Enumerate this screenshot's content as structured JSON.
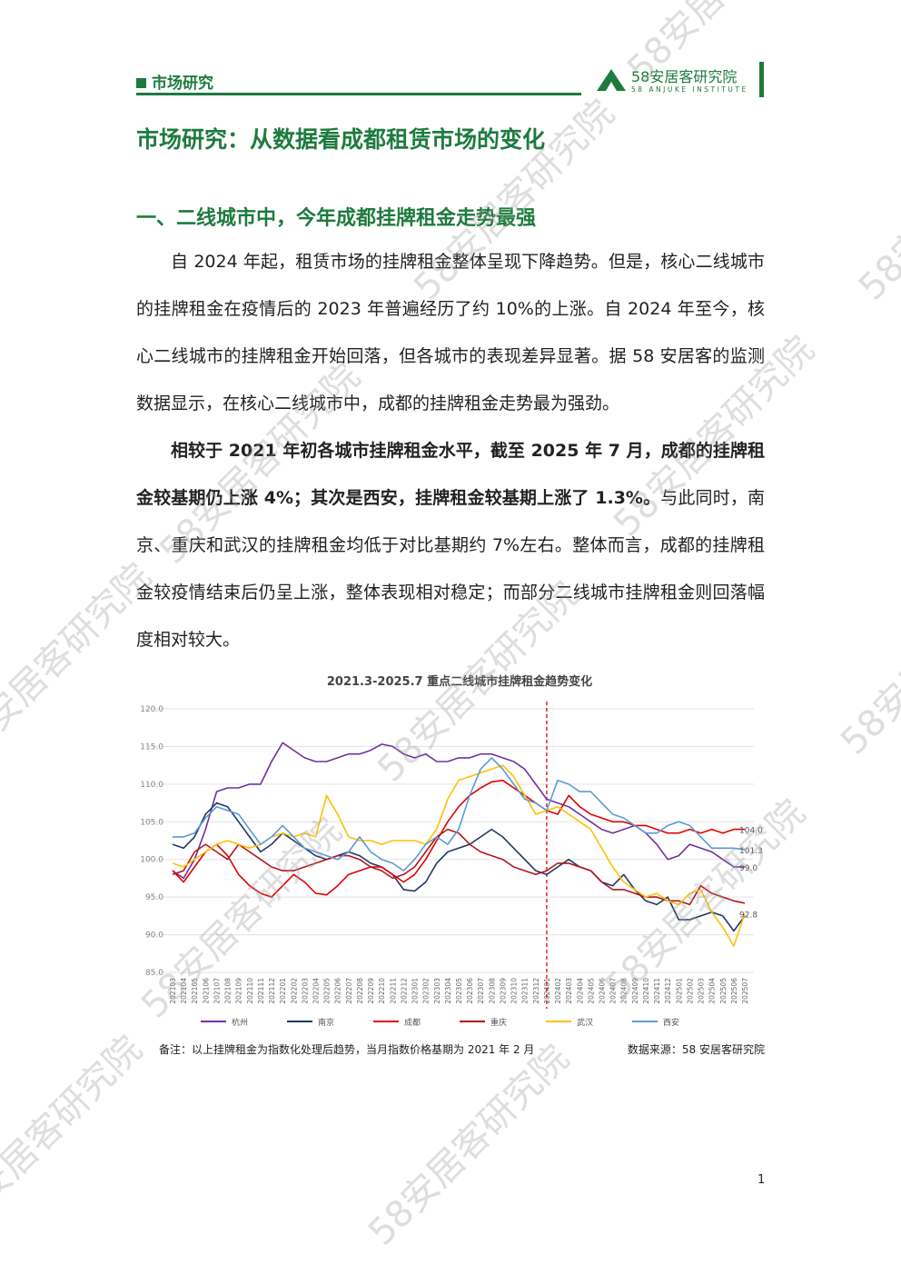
{
  "header": {
    "section": "市场研究",
    "logo_cn": "58安居客研究院",
    "logo_en": "58 ANJUKE INSTITUTE"
  },
  "title": "市场研究：从数据看成都租赁市场的变化",
  "heading": "一、二线城市中，今年成都挂牌租金走势最强",
  "paragraphs": [
    {
      "text": "自 2024 年起，租赁市场的挂牌租金整体呈现下降趋势。但是，核心二线城市的挂牌租金在疫情后的 2023 年普遍经历了约 10%的上涨。自 2024 年至今，核心二线城市的挂牌租金开始回落，但各城市的表现差异显著。据 58 安居客的监测数据显示，在核心二线城市中，成都的挂牌租金走势最为强劲。"
    },
    {
      "bold": "相较于 2021 年初各城市挂牌租金水平，截至 2025 年 7 月，成都的挂牌租金较基期仍上涨 4%；其次是西安，挂牌租金较基期上涨了 1.3%。",
      "text": "与此同时，南京、重庆和武汉的挂牌租金均低于对比基期约 7%左右。整体而言，成都的挂牌租金较疫情结束后仍呈上涨，整体表现相对稳定；而部分二线城市挂牌租金则回落幅度相对较大。"
    }
  ],
  "chart_data": {
    "type": "line",
    "title": "2021.3-2025.7 重点二线城市挂牌租金趋势变化",
    "categories": [
      "202103",
      "202104",
      "202105",
      "202106",
      "202107",
      "202108",
      "202109",
      "202110",
      "202111",
      "202112",
      "202201",
      "202202",
      "202203",
      "202204",
      "202205",
      "202206",
      "202207",
      "202208",
      "202209",
      "202210",
      "202211",
      "202212",
      "202301",
      "202302",
      "202303",
      "202304",
      "202305",
      "202306",
      "202307",
      "202308",
      "202309",
      "202310",
      "202311",
      "202312",
      "202401",
      "202402",
      "202403",
      "202404",
      "202405",
      "202406",
      "202407",
      "202408",
      "202409",
      "202410",
      "202411",
      "202412",
      "202501",
      "202502",
      "202503",
      "202504",
      "202505",
      "202506",
      "202507"
    ],
    "ylim": [
      85,
      120
    ],
    "yticks": [
      {
        "value": 85,
        "label": "85.0"
      },
      {
        "value": 90,
        "label": "90.0"
      },
      {
        "value": 95,
        "label": "95.0"
      },
      {
        "value": 100,
        "label": "100.0"
      },
      {
        "value": 105,
        "label": "105.0"
      },
      {
        "value": 110,
        "label": "110.0"
      },
      {
        "value": 115,
        "label": "115.0"
      },
      {
        "value": 120,
        "label": "120.0"
      }
    ],
    "grid": true,
    "marker_x": "202401",
    "marker_color": "#e00000",
    "legend": "bottom",
    "series": [
      {
        "name": "杭州",
        "color": "#7030a0",
        "values": [
          98.5,
          97.5,
          100,
          104,
          109,
          109.5,
          109.5,
          110,
          110,
          113,
          115.5,
          114.5,
          113.5,
          113,
          113,
          113.5,
          114,
          114,
          114.5,
          115.3,
          115,
          114,
          113.5,
          114,
          113,
          113,
          113.5,
          113.5,
          114,
          114,
          113.5,
          113,
          112,
          110,
          108,
          107.5,
          107,
          106,
          105,
          104,
          103.5,
          104,
          104.5,
          103.5,
          102,
          100,
          100.5,
          102,
          101.5,
          101,
          100,
          99,
          99
        ],
        "value_labels": [
          null,
          null,
          null,
          null,
          null,
          null,
          null,
          null,
          null,
          null,
          null,
          null,
          null,
          null,
          null,
          null,
          null,
          null,
          null,
          null,
          null,
          null,
          null,
          null,
          null,
          null,
          null,
          null,
          null,
          null,
          null,
          null,
          null,
          null,
          null,
          null,
          null,
          null,
          null,
          null,
          null,
          null,
          null,
          null,
          null,
          null,
          null,
          null,
          null,
          null,
          null,
          null,
          "99.0"
        ]
      },
      {
        "name": "南京",
        "color": "#1f3864",
        "values": [
          102,
          101.5,
          103,
          106,
          107.5,
          107,
          105,
          103,
          101,
          102,
          103.5,
          102.5,
          101.5,
          100.5,
          100,
          100.5,
          101,
          100.5,
          99.5,
          99,
          98,
          96,
          95.8,
          97,
          99.5,
          101,
          101.5,
          102,
          103,
          104,
          103,
          101.5,
          100,
          98.5,
          98,
          99,
          100,
          99,
          98.5,
          97,
          96.5,
          98,
          96,
          94.5,
          94,
          95,
          92,
          92,
          92.5,
          93,
          92.5,
          90.5,
          92.5
        ]
      },
      {
        "name": "成都",
        "color": "#e00000",
        "values": [
          98.5,
          97,
          99,
          101,
          102,
          100.5,
          98,
          96.5,
          95.5,
          95,
          96.5,
          98,
          97,
          95.5,
          95.3,
          96.5,
          98,
          98.5,
          99,
          99,
          98,
          97,
          98,
          100,
          102.5,
          105,
          107,
          108.5,
          109.5,
          110.3,
          110.5,
          109.5,
          108.5,
          107.5,
          106.5,
          106,
          108.5,
          107,
          106,
          105.5,
          105,
          105,
          104.5,
          104.5,
          104,
          103.5,
          103.5,
          104,
          103.5,
          104,
          103.5,
          104,
          104
        ],
        "value_labels": [
          null,
          null,
          null,
          null,
          null,
          null,
          null,
          null,
          null,
          null,
          null,
          null,
          null,
          null,
          null,
          null,
          null,
          null,
          null,
          null,
          null,
          null,
          null,
          null,
          null,
          null,
          null,
          null,
          null,
          null,
          null,
          null,
          null,
          null,
          null,
          null,
          null,
          null,
          null,
          null,
          null,
          null,
          null,
          null,
          null,
          null,
          null,
          null,
          null,
          null,
          null,
          null,
          "104.0"
        ]
      },
      {
        "name": "重庆",
        "color": "#b4161b",
        "values": [
          98,
          98.5,
          101,
          102,
          101,
          100,
          102,
          101,
          100,
          99,
          98.5,
          98.5,
          99,
          99.5,
          100,
          100.5,
          100.5,
          100,
          99,
          98.5,
          97.5,
          98,
          99,
          101,
          103,
          104,
          103.5,
          102,
          101,
          100.5,
          100,
          99,
          98.5,
          98,
          98.5,
          99.5,
          99.5,
          99,
          98.5,
          97,
          96,
          96,
          95.5,
          95,
          95,
          94.5,
          94.5,
          94,
          96.5,
          95.5,
          95,
          94.5,
          94.2
        ]
      },
      {
        "name": "武汉",
        "color": "#ffc000",
        "values": [
          99.5,
          99,
          100,
          101,
          102,
          102.5,
          102,
          101.5,
          102,
          103,
          103.5,
          103,
          103.5,
          103,
          108.5,
          106,
          103,
          102.5,
          102.5,
          102,
          102.5,
          102.5,
          102.5,
          102,
          104,
          108,
          110.5,
          111,
          111.5,
          112,
          112.5,
          111,
          108.5,
          106,
          106.5,
          107,
          106,
          105,
          104,
          101.5,
          99,
          97,
          96,
          95,
          95.5,
          94.5,
          94,
          95.5,
          96,
          93,
          91,
          88.5,
          92.8
        ],
        "value_labels": [
          null,
          null,
          null,
          null,
          null,
          null,
          null,
          null,
          null,
          null,
          null,
          null,
          null,
          null,
          null,
          null,
          null,
          null,
          null,
          null,
          null,
          null,
          null,
          null,
          null,
          null,
          null,
          null,
          null,
          null,
          null,
          null,
          null,
          null,
          null,
          null,
          null,
          null,
          null,
          null,
          null,
          null,
          null,
          null,
          null,
          null,
          null,
          null,
          null,
          null,
          null,
          null,
          "92.8"
        ]
      },
      {
        "name": "西安",
        "color": "#5b9bd5",
        "values": [
          103,
          103,
          103.5,
          105.5,
          107,
          106.5,
          106,
          104,
          102,
          103,
          104.5,
          103,
          101.5,
          101,
          100.5,
          100,
          101,
          103,
          101,
          100,
          99.5,
          98.5,
          100,
          102,
          103,
          102,
          104,
          108.5,
          112,
          113.5,
          112,
          110,
          108,
          107.5,
          106.5,
          110.5,
          110,
          109,
          109,
          107.5,
          106,
          105.5,
          104.5,
          103.5,
          103.5,
          104.5,
          105,
          104.5,
          103,
          101.5,
          101.5,
          101.5,
          101.3
        ],
        "value_labels": [
          null,
          null,
          null,
          null,
          null,
          null,
          null,
          null,
          null,
          null,
          null,
          null,
          null,
          null,
          null,
          null,
          null,
          null,
          null,
          null,
          null,
          null,
          null,
          null,
          null,
          null,
          null,
          null,
          null,
          null,
          null,
          null,
          null,
          null,
          null,
          null,
          null,
          null,
          null,
          null,
          null,
          null,
          null,
          null,
          null,
          null,
          null,
          null,
          null,
          null,
          null,
          null,
          "101.3"
        ]
      }
    ],
    "note": "备注：以上挂牌租金为指数化处理后趋势，当月指数价格基期为 2021 年 2 月",
    "source": "数据来源：58 安居客研究院"
  },
  "page_number": "1",
  "watermark": "58安居客研究院"
}
